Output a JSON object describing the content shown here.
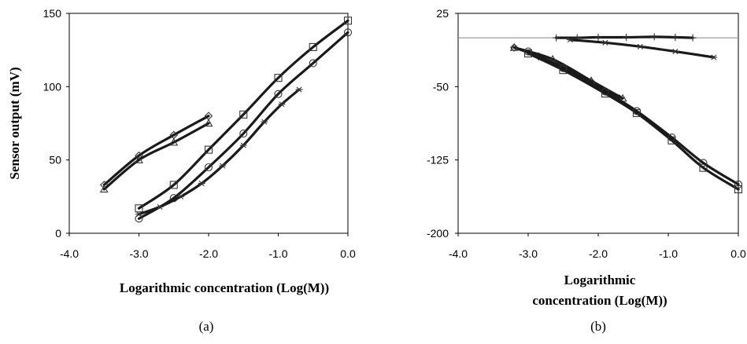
{
  "chart_data": [
    {
      "type": "line",
      "panel_label": "(a)",
      "xlabel": "Logarithmic concentration (Log(M))",
      "ylabel": "Sensor output  (mV)",
      "xlim": [
        -4.0,
        0.0
      ],
      "ylim": [
        0,
        150
      ],
      "xticks": [
        "-4.0",
        "-3.0",
        "-2.0",
        "-1.0",
        "0.0"
      ],
      "yticks": [
        "0",
        "50",
        "100",
        "150"
      ],
      "grid": false,
      "series": [
        {
          "marker": "diamond",
          "points": [
            [
              -3.5,
              33
            ],
            [
              -3.0,
              53
            ],
            [
              -2.5,
              67
            ],
            [
              -2.0,
              80
            ]
          ]
        },
        {
          "marker": "triangle",
          "points": [
            [
              -3.5,
              30
            ],
            [
              -3.0,
              50
            ],
            [
              -2.5,
              62
            ],
            [
              -2.0,
              75
            ]
          ]
        },
        {
          "marker": "square",
          "points": [
            [
              -3.0,
              17
            ],
            [
              -2.5,
              33
            ],
            [
              -2.0,
              57
            ],
            [
              -1.5,
              81
            ],
            [
              -1.0,
              106
            ],
            [
              -0.5,
              127
            ],
            [
              0.0,
              145
            ]
          ]
        },
        {
          "marker": "circle",
          "points": [
            [
              -3.0,
              10
            ],
            [
              -2.5,
              24
            ],
            [
              -2.0,
              45
            ],
            [
              -1.5,
              68
            ],
            [
              -1.0,
              95
            ],
            [
              -0.5,
              116
            ],
            [
              0.0,
              137
            ]
          ]
        },
        {
          "marker": "star",
          "points": [
            [
              -3.0,
              13
            ],
            [
              -2.7,
              18
            ],
            [
              -2.4,
              25
            ],
            [
              -2.1,
              34
            ],
            [
              -1.8,
              46
            ],
            [
              -1.5,
              60
            ],
            [
              -1.2,
              76
            ],
            [
              -0.95,
              88
            ],
            [
              -0.7,
              98
            ]
          ]
        }
      ]
    },
    {
      "type": "line",
      "panel_label": "(b)",
      "xlabel": "Logarithmic concentration (Log(M))",
      "ylabel": "",
      "xlim": [
        -4.0,
        0.0
      ],
      "ylim": [
        -200,
        25
      ],
      "xticks": [
        "-4.0",
        "-3.0",
        "-2.0",
        "-1.0",
        "0.0"
      ],
      "yticks": [
        "25",
        "-50",
        "-125",
        "-200"
      ],
      "reference_line_y": 0,
      "grid": false,
      "series": [
        {
          "marker": "plus",
          "points": [
            [
              -2.6,
              0
            ],
            [
              -2.3,
              0
            ],
            [
              -2.0,
              0.5
            ],
            [
              -1.6,
              0.5
            ],
            [
              -1.2,
              1
            ],
            [
              -0.9,
              0.5
            ],
            [
              -0.65,
              0
            ]
          ]
        },
        {
          "marker": "star",
          "points": [
            [
              -2.4,
              -2
            ],
            [
              -1.9,
              -5
            ],
            [
              -1.4,
              -9
            ],
            [
              -0.9,
              -14
            ],
            [
              -0.35,
              -20
            ]
          ]
        },
        {
          "marker": "diamond",
          "points": [
            [
              -3.2,
              -10
            ],
            [
              -2.85,
              -19
            ],
            [
              -2.5,
              -30
            ],
            [
              -2.1,
              -45
            ],
            [
              -1.7,
              -62
            ]
          ]
        },
        {
          "marker": "triangle",
          "points": [
            [
              -3.2,
              -10
            ],
            [
              -2.65,
              -22
            ],
            [
              -2.1,
              -44
            ],
            [
              -1.65,
              -62
            ]
          ]
        },
        {
          "marker": "square",
          "points": [
            [
              -3.0,
              -16
            ],
            [
              -2.5,
              -33
            ],
            [
              -1.9,
              -57
            ],
            [
              -1.45,
              -77
            ],
            [
              -0.95,
              -105
            ],
            [
              -0.5,
              -133
            ],
            [
              0.0,
              -155
            ]
          ]
        },
        {
          "marker": "circle",
          "points": [
            [
              -3.0,
              -14
            ],
            [
              -2.5,
              -31
            ],
            [
              -1.9,
              -55
            ],
            [
              -1.45,
              -75
            ],
            [
              -0.95,
              -102
            ],
            [
              -0.5,
              -128
            ],
            [
              0.0,
              -150
            ]
          ]
        }
      ]
    }
  ]
}
